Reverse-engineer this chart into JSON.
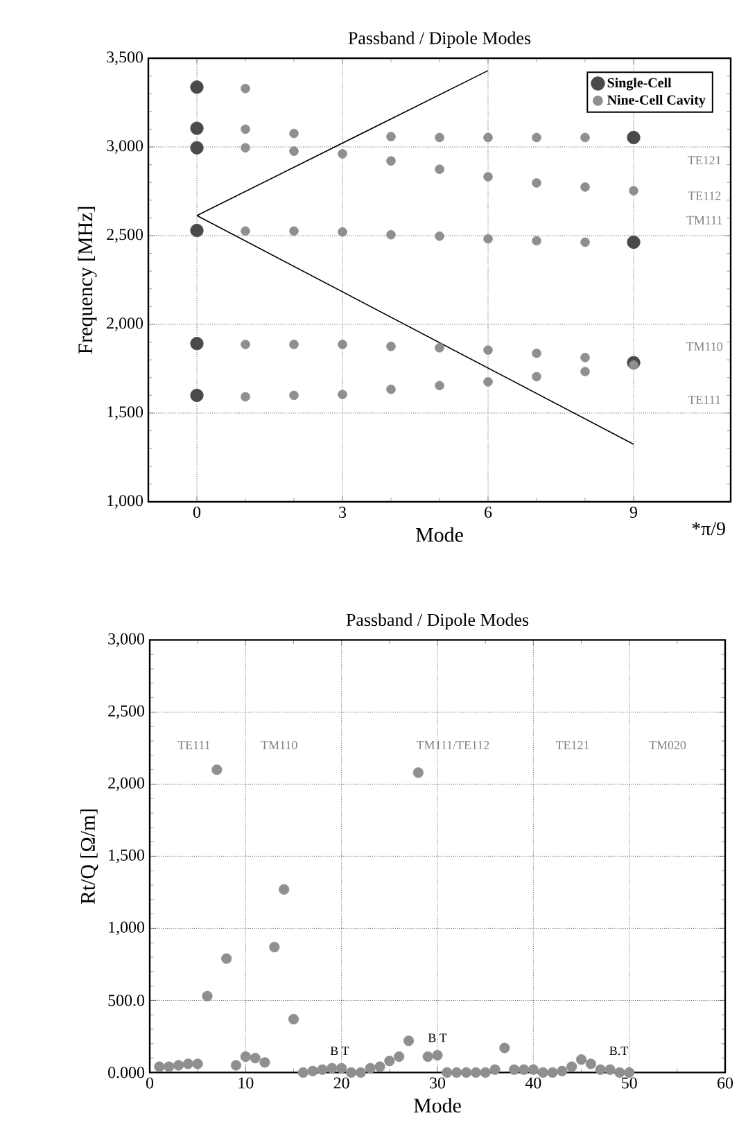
{
  "chart_data": [
    {
      "type": "scatter",
      "title": "Passband / Dipole Modes",
      "xlabel": "Mode",
      "ylabel": "Frequency  [MHz]",
      "xlim": [
        -1,
        11
      ],
      "xticks": [
        0,
        3,
        6,
        9
      ],
      "ylim": [
        1000,
        3500
      ],
      "yticks": [
        {
          "value": 1000,
          "label": "1,000"
        },
        {
          "value": 1500,
          "label": "1,500"
        },
        {
          "value": 2000,
          "label": "2,000"
        },
        {
          "value": 2500,
          "label": "2,500"
        },
        {
          "value": 3000,
          "label": "3,000"
        },
        {
          "value": 3500,
          "label": "3,500"
        }
      ],
      "grid": true,
      "legend": "top right",
      "annotations": [
        "*π/9",
        "TE121",
        "TE112",
        "TM111",
        "TM110",
        "TE111"
      ],
      "series": [
        {
          "name": "Single-Cell",
          "marker": "circle",
          "color": "#4a4a4a",
          "x": [
            0,
            0,
            0,
            0,
            0,
            0,
            9,
            9,
            9
          ],
          "values": [
            3337,
            3105,
            2995,
            2529,
            1892,
            1600,
            3053,
            2463,
            1784
          ]
        },
        {
          "name": "Nine-Cell Cavity",
          "marker": "circle",
          "color": "#8f8f8f",
          "x": [
            1,
            1,
            1,
            1,
            1,
            1,
            2,
            2,
            2,
            2,
            2,
            3,
            3,
            3,
            3,
            4,
            4,
            4,
            4,
            4,
            5,
            5,
            5,
            5,
            5,
            6,
            6,
            6,
            6,
            6,
            7,
            7,
            7,
            7,
            7,
            8,
            8,
            8,
            8,
            8,
            9,
            9
          ],
          "values": [
            3329,
            3100,
            2995,
            2526,
            1887,
            1592,
            3076,
            2976,
            2526,
            1887,
            1600,
            2961,
            2521,
            1887,
            1605,
            3058,
            2921,
            2505,
            1876,
            1634,
            3053,
            2874,
            2497,
            1868,
            1655,
            3053,
            2832,
            2482,
            1855,
            1676,
            3053,
            2797,
            2471,
            1837,
            1705,
            3053,
            2774,
            2463,
            1813,
            1734,
            2753,
            1771
          ]
        },
        {
          "type": "line",
          "marker": "none",
          "color": "#000000",
          "x": [
            0,
            6
          ],
          "values": [
            2613,
            3430
          ]
        },
        {
          "type": "line",
          "marker": "none",
          "color": "#000000",
          "x": [
            0,
            9
          ],
          "values": [
            2613,
            1324
          ]
        }
      ]
    },
    {
      "type": "scatter",
      "title": "Passband / Dipole Modes",
      "xlabel": "Mode",
      "ylabel": "Rt/Q  [Ω/m]",
      "xlim": [
        0,
        60
      ],
      "xticks": [
        0,
        10,
        20,
        30,
        40,
        50,
        60
      ],
      "ylim": [
        0,
        3000
      ],
      "yticks": [
        {
          "value": 0,
          "label": "0.000"
        },
        {
          "value": 500,
          "label": "500.0"
        },
        {
          "value": 1000,
          "label": "1,000"
        },
        {
          "value": 1500,
          "label": "1,500"
        },
        {
          "value": 2000,
          "label": "2,000"
        },
        {
          "value": 2500,
          "label": "2,500"
        },
        {
          "value": 3000,
          "label": "3,000"
        }
      ],
      "grid": true,
      "annotations": [
        "TE111",
        "TM110",
        "TM111/TE112",
        "TE121",
        "TM020",
        "B T",
        "B T",
        "B.T"
      ],
      "series": [
        {
          "marker": "circle",
          "color": "#8f8f8f",
          "x": [
            1,
            2,
            3,
            4,
            5,
            6,
            7,
            8,
            9,
            10,
            11,
            12,
            13,
            14,
            15,
            16,
            17,
            18,
            19,
            20,
            21,
            22,
            23,
            24,
            25,
            26,
            27,
            28,
            29,
            30,
            31,
            32,
            33,
            34,
            35,
            36,
            37,
            38,
            39,
            40,
            41,
            42,
            43,
            44,
            45,
            46,
            47,
            48,
            49,
            50
          ],
          "values": [
            40,
            40,
            50,
            60,
            60,
            530,
            2100,
            790,
            50,
            110,
            100,
            70,
            870,
            1270,
            370,
            0,
            10,
            20,
            30,
            30,
            0,
            0,
            30,
            40,
            80,
            110,
            220,
            2080,
            110,
            120,
            0,
            0,
            0,
            0,
            0,
            20,
            170,
            20,
            20,
            20,
            0,
            0,
            10,
            40,
            90,
            60,
            20,
            20,
            0,
            0
          ]
        }
      ]
    }
  ]
}
